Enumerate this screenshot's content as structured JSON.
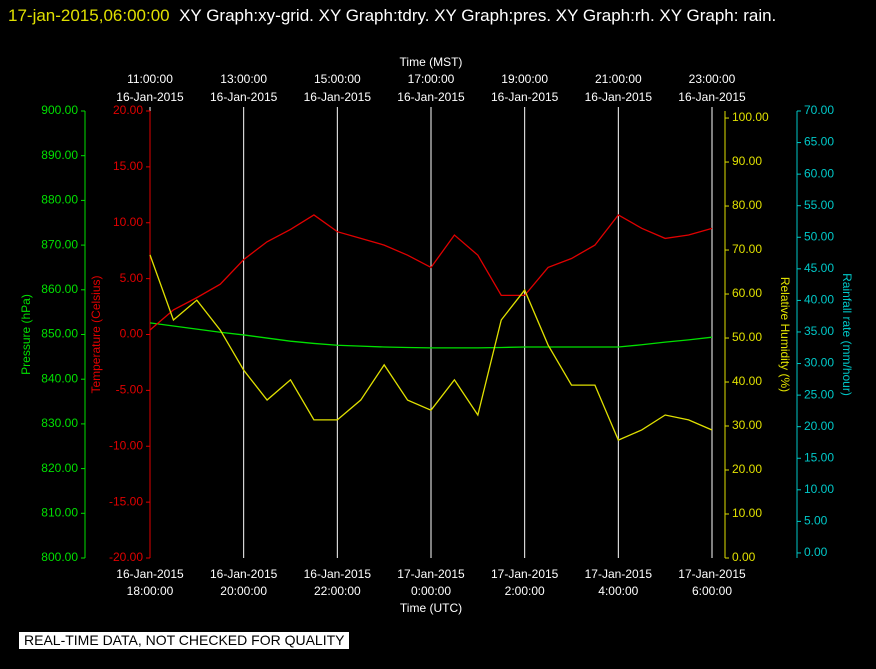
{
  "chart_data": {
    "type": "line",
    "title_time": "17-jan-2015,06:00:00",
    "title": "XY Graph:xy-grid.  XY Graph:tdry.  XY Graph:pres.  XY Graph:rh.  XY Graph: rain.",
    "footer": "REAL-TIME DATA, NOT CHECKED FOR QUALITY",
    "xlabel": "Time (UTC)",
    "x2label": "Time (MST)",
    "x": [
      0,
      0.5,
      1,
      1.5,
      2,
      2.5,
      3,
      3.5,
      4,
      4.5,
      5,
      5.5,
      6,
      6.5,
      7,
      7.5,
      8,
      8.5,
      9,
      9.5,
      10,
      10.5,
      11,
      11.5,
      12
    ],
    "xlim": [
      0,
      12
    ],
    "xticks": [
      {
        "value": 0,
        "label": [
          "16-Jan-2015",
          "18:00:00"
        ]
      },
      {
        "value": 2,
        "label": [
          "16-Jan-2015",
          "20:00:00"
        ]
      },
      {
        "value": 4,
        "label": [
          "16-Jan-2015",
          "22:00:00"
        ]
      },
      {
        "value": 6,
        "label": [
          "17-Jan-2015",
          "0:00:00"
        ]
      },
      {
        "value": 8,
        "label": [
          "17-Jan-2015",
          "2:00:00"
        ]
      },
      {
        "value": 10,
        "label": [
          "17-Jan-2015",
          "4:00:00"
        ]
      },
      {
        "value": 12,
        "label": [
          "17-Jan-2015",
          "6:00:00"
        ]
      }
    ],
    "x2ticks": [
      {
        "value": 0,
        "label": [
          "11:00:00",
          "16-Jan-2015"
        ]
      },
      {
        "value": 2,
        "label": [
          "13:00:00",
          "16-Jan-2015"
        ]
      },
      {
        "value": 4,
        "label": [
          "15:00:00",
          "16-Jan-2015"
        ]
      },
      {
        "value": 6,
        "label": [
          "17:00:00",
          "16-Jan-2015"
        ]
      },
      {
        "value": 8,
        "label": [
          "19:00:00",
          "16-Jan-2015"
        ]
      },
      {
        "value": 10,
        "label": [
          "21:00:00",
          "16-Jan-2015"
        ]
      },
      {
        "value": 12,
        "label": [
          "23:00:00",
          "16-Jan-2015"
        ]
      }
    ],
    "grid": true,
    "ylabel": "Temperature (Celsius)",
    "ylim": [
      -20,
      20
    ],
    "ycolor": "#e00000",
    "yticks": [
      {
        "value": -20,
        "label": "-20.00"
      },
      {
        "value": -15,
        "label": "-15.00"
      },
      {
        "value": -10,
        "label": "-10.00"
      },
      {
        "value": -5,
        "label": "-5.00"
      },
      {
        "value": 0,
        "label": "0.00"
      },
      {
        "value": 5,
        "label": "5.00"
      },
      {
        "value": 10,
        "label": "10.00"
      },
      {
        "value": 15,
        "label": "15.00"
      },
      {
        "value": 20,
        "label": "20.00"
      }
    ],
    "y2label": "Pressure (hPa)",
    "y2lim": [
      800,
      900
    ],
    "y2color": "#00e000",
    "y2ticks": [
      {
        "value": 800,
        "label": "800.00"
      },
      {
        "value": 810,
        "label": "810.00"
      },
      {
        "value": 820,
        "label": "820.00"
      },
      {
        "value": 830,
        "label": "830.00"
      },
      {
        "value": 840,
        "label": "840.00"
      },
      {
        "value": 850,
        "label": "850.00"
      },
      {
        "value": 860,
        "label": "860.00"
      },
      {
        "value": 870,
        "label": "870.00"
      },
      {
        "value": 880,
        "label": "880.00"
      },
      {
        "value": 890,
        "label": "890.00"
      },
      {
        "value": 900,
        "label": "900.00"
      }
    ],
    "y3label": "Relative Humidity (%)",
    "y3lim": [
      0,
      101.6
    ],
    "y3color": "#e0e000",
    "y3ticks": [
      {
        "value": 0,
        "label": "0.00"
      },
      {
        "value": 10,
        "label": "10.00"
      },
      {
        "value": 20,
        "label": "20.00"
      },
      {
        "value": 30,
        "label": "30.00"
      },
      {
        "value": 40,
        "label": "40.00"
      },
      {
        "value": 50,
        "label": "50.00"
      },
      {
        "value": 60,
        "label": "60.00"
      },
      {
        "value": 70,
        "label": "70.00"
      },
      {
        "value": 80,
        "label": "80.00"
      },
      {
        "value": 90,
        "label": "90.00"
      },
      {
        "value": 100,
        "label": "100.00"
      }
    ],
    "y4label": "Rainfall rate (mm/hour)",
    "y4lim": [
      -0.8,
      70
    ],
    "y4color": "#00c8c8",
    "y4ticks": [
      {
        "value": 0,
        "label": "0.00"
      },
      {
        "value": 5,
        "label": "5.00"
      },
      {
        "value": 10,
        "label": "10.00"
      },
      {
        "value": 15,
        "label": "15.00"
      },
      {
        "value": 20,
        "label": "20.00"
      },
      {
        "value": 25,
        "label": "25.00"
      },
      {
        "value": 30,
        "label": "30.00"
      },
      {
        "value": 35,
        "label": "35.00"
      },
      {
        "value": 40,
        "label": "40.00"
      },
      {
        "value": 45,
        "label": "45.00"
      },
      {
        "value": 50,
        "label": "50.00"
      },
      {
        "value": 55,
        "label": "55.00"
      },
      {
        "value": 60,
        "label": "60.00"
      },
      {
        "value": 65,
        "label": "65.00"
      },
      {
        "value": 70,
        "label": "70.00"
      }
    ],
    "series": [
      {
        "axis": "y2",
        "color": "#00e000",
        "values": [
          852.6,
          851.9,
          851.2,
          850.5,
          849.9,
          849.2,
          848.5,
          848.0,
          847.6,
          847.4,
          847.2,
          847.1,
          847.0,
          847.0,
          847.0,
          847.1,
          847.2,
          847.2,
          847.2,
          847.2,
          847.2,
          847.7,
          848.3,
          848.8,
          849.4
        ]
      },
      {
        "axis": "y",
        "color": "#e00000",
        "values": [
          0.4,
          2.2,
          3.3,
          4.5,
          6.7,
          8.3,
          9.4,
          10.7,
          9.2,
          8.6,
          8.0,
          7.1,
          6.0,
          8.9,
          7.1,
          3.5,
          3.5,
          6.0,
          6.8,
          8.0,
          10.7,
          9.5,
          8.6,
          8.9,
          9.5
        ]
      },
      {
        "axis": "y3",
        "color": "#e0e000",
        "values": [
          68.9,
          54.1,
          58.6,
          51.8,
          42.7,
          35.9,
          40.5,
          31.4,
          31.4,
          35.9,
          43.9,
          35.9,
          33.6,
          40.5,
          32.5,
          54.1,
          60.9,
          48.4,
          39.3,
          39.3,
          26.8,
          29.1,
          32.5,
          31.4,
          29.1
        ]
      }
    ]
  }
}
